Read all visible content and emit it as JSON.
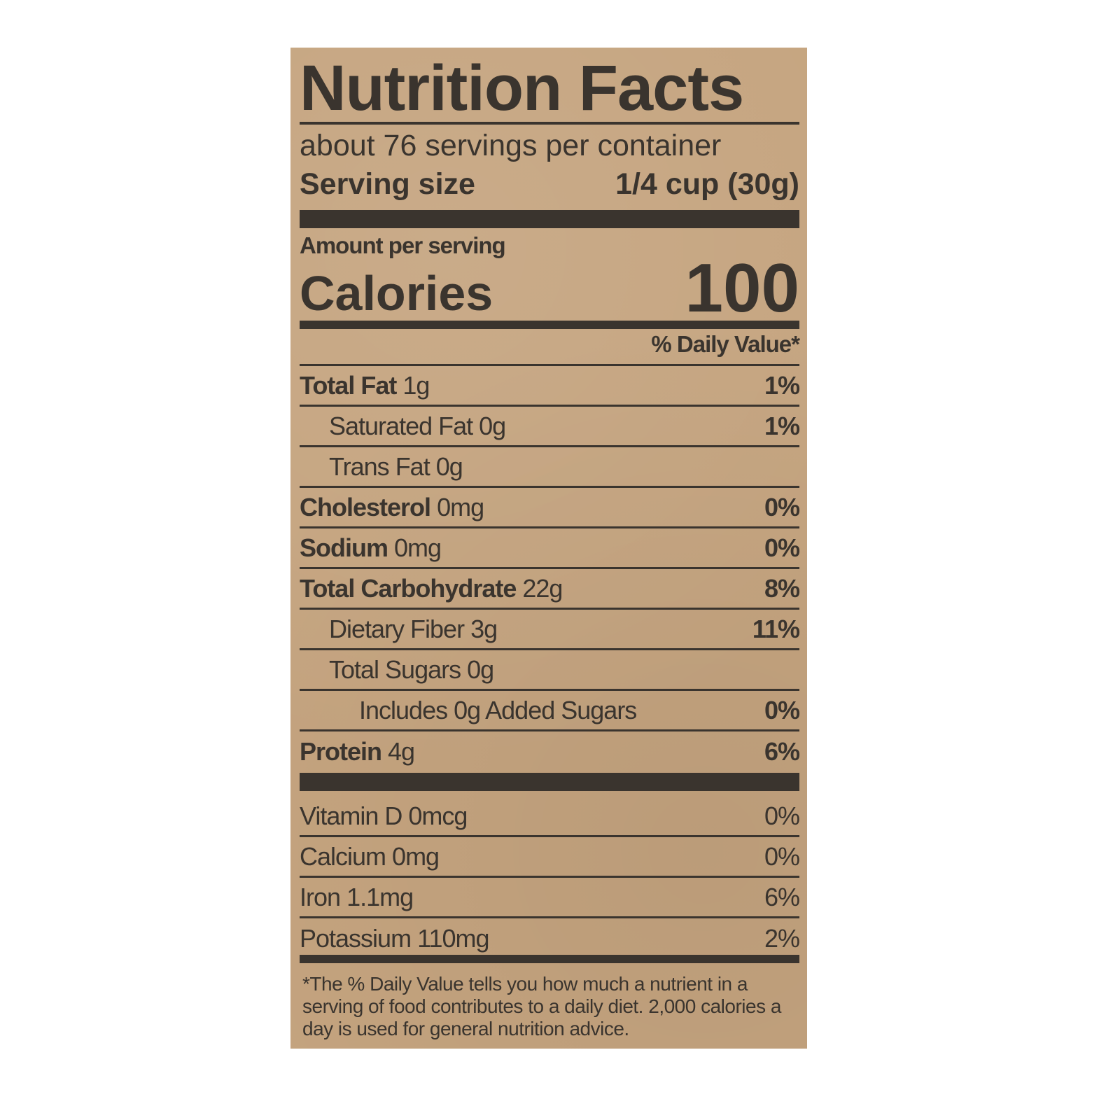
{
  "label": {
    "title": "Nutrition Facts",
    "servings_per_container": "about 76 servings per container",
    "serving_size_label": "Serving size",
    "serving_size_value": "1/4 cup (30g)",
    "amount_per_serving": "Amount per serving",
    "calories_label": "Calories",
    "calories_value": "100",
    "daily_value_header": "% Daily Value*",
    "nutrients": [
      {
        "name": "Total Fat",
        "amount": "1g",
        "dv": "1%"
      },
      {
        "name": "Saturated Fat",
        "amount": "0g",
        "dv": "1%"
      },
      {
        "name": "Trans Fat",
        "amount": "0g",
        "dv": ""
      },
      {
        "name": "Cholesterol",
        "amount": "0mg",
        "dv": "0%"
      },
      {
        "name": "Sodium",
        "amount": "0mg",
        "dv": "0%"
      },
      {
        "name": "Total Carbohydrate",
        "amount": "22g",
        "dv": "8%"
      },
      {
        "name": "Dietary Fiber",
        "amount": "3g",
        "dv": "11%"
      },
      {
        "name": "Total Sugars",
        "amount": "0g",
        "dv": ""
      },
      {
        "name": "Includes 0g Added Sugars",
        "amount": "",
        "dv": "0%"
      },
      {
        "name": "Protein",
        "amount": "4g",
        "dv": "6%"
      }
    ],
    "vitamins": [
      {
        "name": "Vitamin D",
        "amount": "0mcg",
        "dv": "0%"
      },
      {
        "name": "Calcium",
        "amount": "0mg",
        "dv": "0%"
      },
      {
        "name": "Iron",
        "amount": "1.1mg",
        "dv": "6%"
      },
      {
        "name": "Potassium",
        "amount": "110mg",
        "dv": "2%"
      }
    ],
    "footnote": "*The % Daily Value tells you how much a nutrient in a serving of food contributes to a daily diet. 2,000 calories a day is used for general nutrition advice."
  },
  "colors": {
    "paper": "#c5a47f",
    "ink": "#3a342e"
  }
}
